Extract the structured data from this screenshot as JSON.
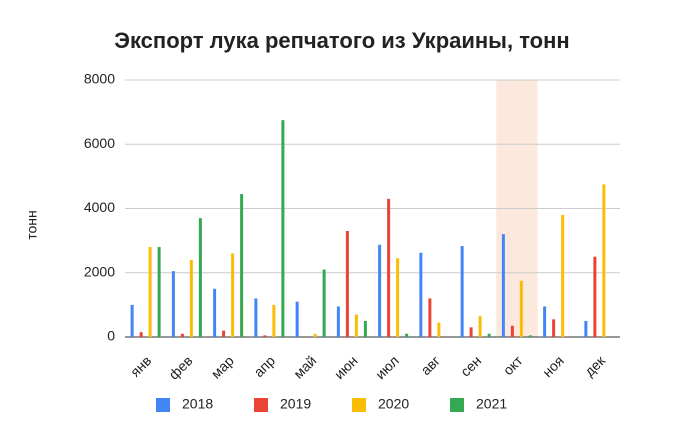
{
  "chart_data": {
    "type": "bar",
    "title": "Экспорт лука репчатого из Украины, тонн",
    "y_label": "тонн",
    "categories": [
      "янв",
      "фев",
      "мар",
      "апр",
      "май",
      "июн",
      "июл",
      "авг",
      "сен",
      "окт",
      "ноя",
      "дек"
    ],
    "series": [
      {
        "name": "2018",
        "color": "#4285f4",
        "values": [
          1000,
          2050,
          1500,
          1200,
          1100,
          950,
          2870,
          2620,
          2830,
          3200,
          950,
          500
        ]
      },
      {
        "name": "2019",
        "color": "#ea4335",
        "values": [
          150,
          100,
          200,
          50,
          0,
          3300,
          4300,
          1200,
          300,
          350,
          550,
          2500
        ]
      },
      {
        "name": "2020",
        "color": "#fbbc04",
        "values": [
          2800,
          2400,
          2600,
          1000,
          100,
          700,
          2450,
          450,
          650,
          1750,
          3800,
          4750
        ]
      },
      {
        "name": "2021",
        "color": "#34a853",
        "values": [
          2800,
          3700,
          4450,
          6750,
          2100,
          500,
          100,
          0,
          100,
          50,
          null,
          null
        ]
      }
    ],
    "ylim": [
      0,
      8000
    ],
    "yticks": [
      0,
      2000,
      4000,
      6000,
      8000
    ],
    "grid": true,
    "highlight": "окт",
    "highlight_color": "#fce8dc",
    "legend": "bottom"
  }
}
